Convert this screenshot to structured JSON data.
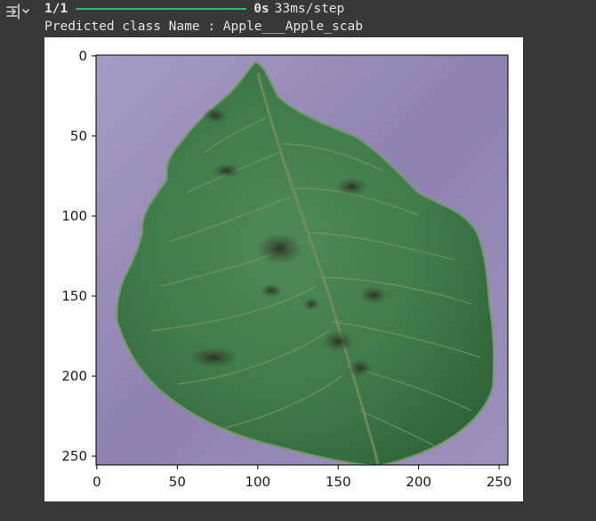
{
  "output": {
    "icon": "output-toggle-icon",
    "progress": {
      "count": "1/1",
      "fraction": 1.0,
      "time": "0s",
      "rate": "33ms/step",
      "bar_color": "#21c45d"
    },
    "prediction_text": "Predicted class Name : Apple___Apple_scab"
  },
  "figure": {
    "x_ticks": [
      "0",
      "50",
      "100",
      "150",
      "200",
      "250"
    ],
    "y_ticks": [
      "0",
      "50",
      "100",
      "150",
      "200",
      "250"
    ],
    "image_subject": "apple leaf with scab lesions on purple background"
  }
}
